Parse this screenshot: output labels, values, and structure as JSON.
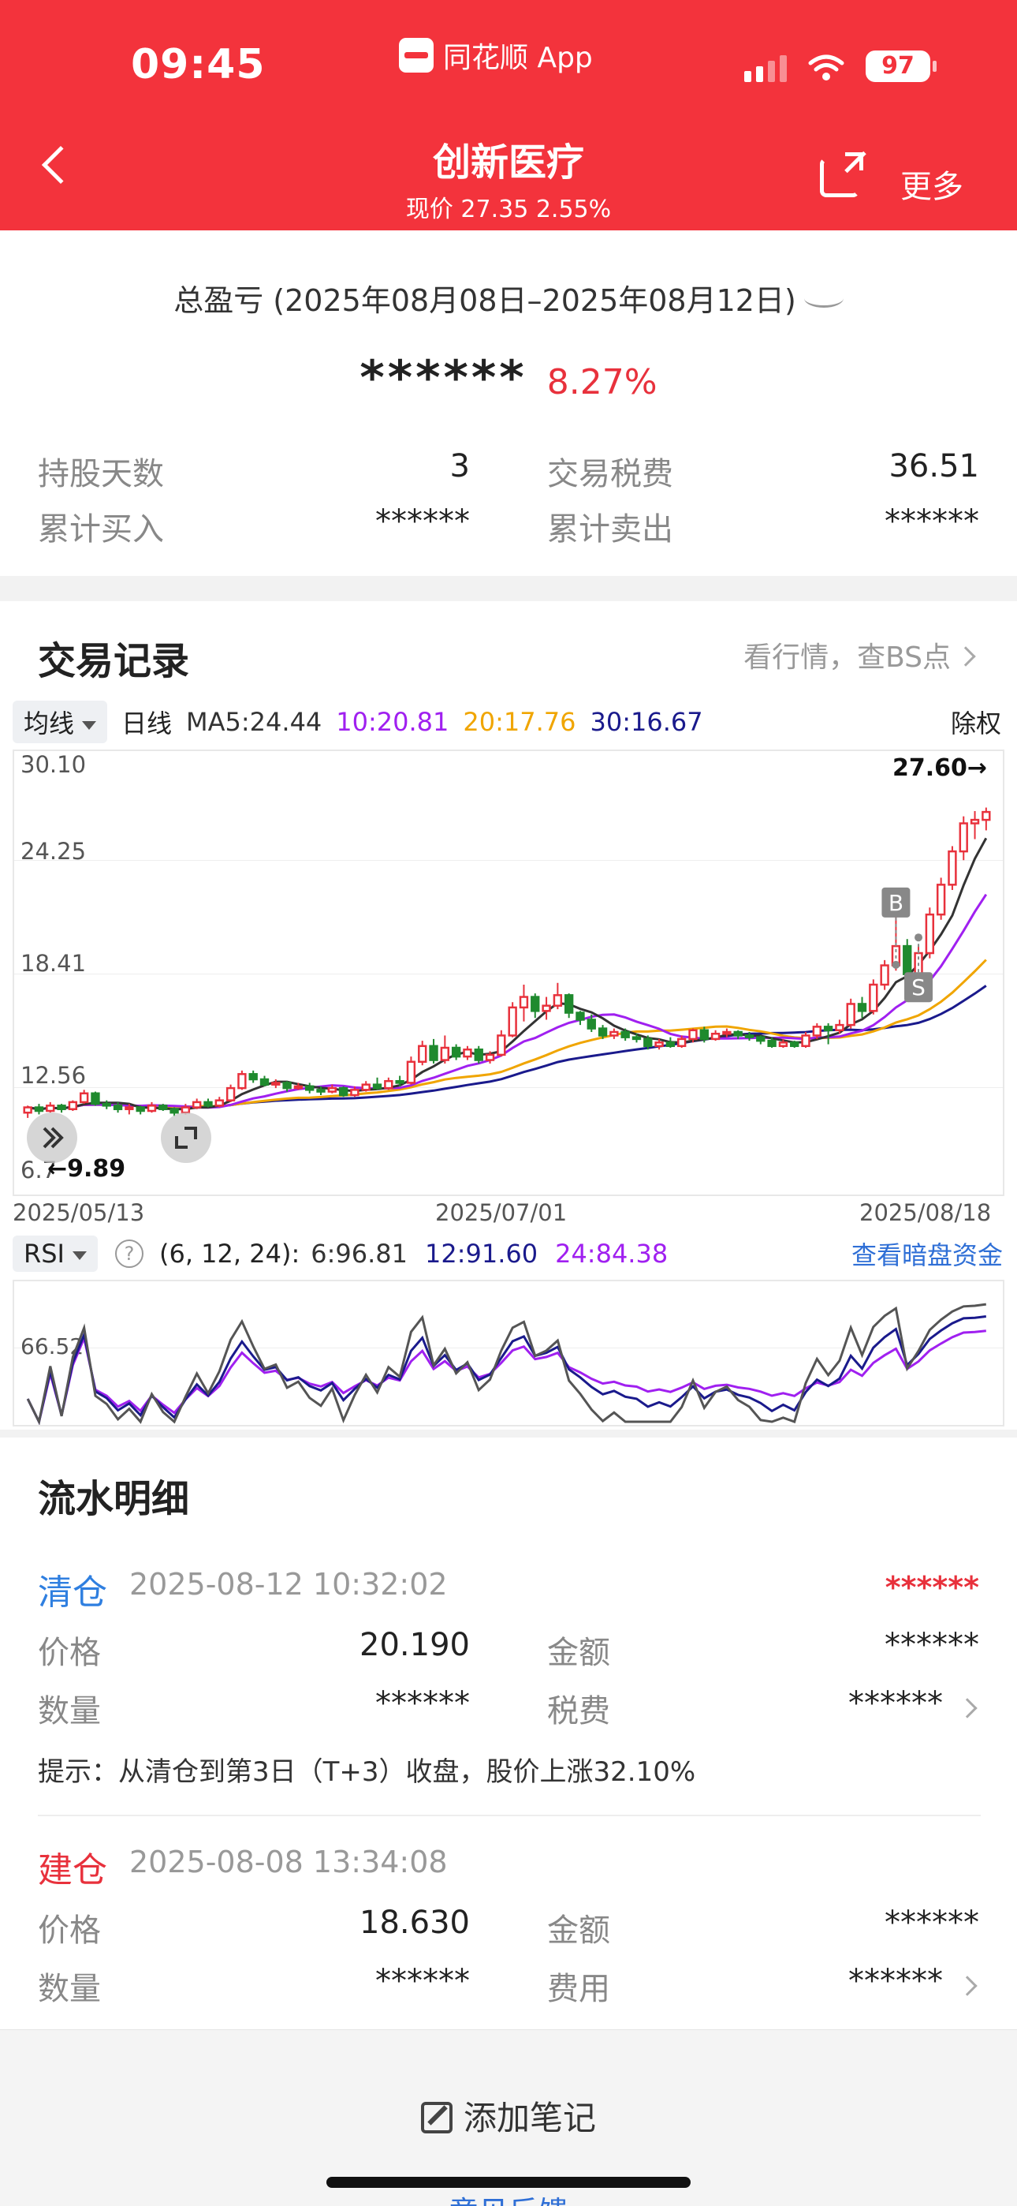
{
  "status_bar": {
    "time": "09:45",
    "app_name": "同花顺 App",
    "battery": "97"
  },
  "nav": {
    "title": "创新医疗",
    "subtitle": "现价 27.35 2.55%",
    "more": "更多"
  },
  "summary": {
    "title": "总盈亏 (2025年08月08日–2025年08月12日)",
    "profit_hidden": "******",
    "profit_pct": "8.27%",
    "hold_days_label": "持股天数",
    "hold_days_value": "3",
    "tax_label": "交易税费",
    "tax_value": "36.51",
    "buy_total_label": "累计买入",
    "buy_total_value": "******",
    "sell_total_label": "累计卖出",
    "sell_total_value": "******"
  },
  "records": {
    "title": "交易记录",
    "link": "看行情，查BS点",
    "toolbar": {
      "ma_select": "均线",
      "period": "日线",
      "ma5": "MA5:24.44",
      "ma10": "10:20.81",
      "ma20": "20:17.76",
      "ma30": "30:16.67",
      "adjust": "除权"
    },
    "y_labels": [
      "30.10",
      "24.25",
      "18.41",
      "12.56",
      "6.7"
    ],
    "max_label": "27.60→",
    "min_label": "←9.89",
    "dates": [
      "2025/05/13",
      "2025/07/01",
      "2025/08/18"
    ],
    "markers": {
      "buy": "B",
      "sell": "S"
    },
    "rsi": {
      "select": "RSI",
      "help": "?",
      "params": "(6, 12, 24):",
      "rsi6": "6:96.81",
      "rsi12": "12:91.60",
      "rsi24": "24:84.38",
      "link": "查看暗盘资金",
      "y_label": "66.52"
    }
  },
  "flow": {
    "title": "流水明细",
    "entries": [
      {
        "type": "清仓",
        "time": "2025-08-12 10:32:02",
        "amount_hidden": "******",
        "price_label": "价格",
        "price": "20.190",
        "amount_label": "金额",
        "amount": "******",
        "qty_label": "数量",
        "qty": "******",
        "fee_label": "税费",
        "fee": "******",
        "tip": "提示：从清仓到第3日（T+3）收盘，股价上涨32.10%"
      },
      {
        "type": "建仓",
        "time": "2025-08-08 13:34:08",
        "price_label": "价格",
        "price": "18.630",
        "amount_label": "金额",
        "amount": "******",
        "qty_label": "数量",
        "qty": "******",
        "fee_label": "费用",
        "fee": "******"
      }
    ]
  },
  "bottom": {
    "add_note": "添加笔记",
    "feedback": "意见反馈"
  },
  "colors": {
    "brand_red": "#f3333c",
    "up": "#e8313c",
    "down": "#1f8a2e",
    "ma5": "#333333",
    "ma10": "#a020f0",
    "ma20": "#f0a500",
    "ma30": "#1a1a8c",
    "link_blue": "#2f6fd6"
  },
  "chart_data": {
    "type": "candlestick",
    "x_range": [
      "2025/05/13",
      "2025/08/18"
    ],
    "ylim": [
      6.7,
      30.1
    ],
    "y_ticks": [
      30.1,
      24.25,
      18.41,
      12.56
    ],
    "max_price": 27.6,
    "min_price": 9.89,
    "candles": [
      [
        10.2,
        10.5,
        9.9,
        10.6
      ],
      [
        10.5,
        10.3,
        10.1,
        10.7
      ],
      [
        10.3,
        10.6,
        10.2,
        10.8
      ],
      [
        10.6,
        10.4,
        10.2,
        10.7
      ],
      [
        10.4,
        10.8,
        10.3,
        10.9
      ],
      [
        10.8,
        11.3,
        10.7,
        11.5
      ],
      [
        11.3,
        10.7,
        10.6,
        11.4
      ],
      [
        10.7,
        10.6,
        10.4,
        10.9
      ],
      [
        10.6,
        10.4,
        10.2,
        10.8
      ],
      [
        10.4,
        10.5,
        10.1,
        10.7
      ],
      [
        10.5,
        10.3,
        10.1,
        10.6
      ],
      [
        10.3,
        10.6,
        10.2,
        10.8
      ],
      [
        10.6,
        10.4,
        10.3,
        10.7
      ],
      [
        10.4,
        10.2,
        10.0,
        10.5
      ],
      [
        10.2,
        10.5,
        10.1,
        10.7
      ],
      [
        10.5,
        10.8,
        10.4,
        11.0
      ],
      [
        10.8,
        10.6,
        10.5,
        11.0
      ],
      [
        10.6,
        10.9,
        10.5,
        11.1
      ],
      [
        10.9,
        11.6,
        10.8,
        11.8
      ],
      [
        11.6,
        12.4,
        11.5,
        12.6
      ],
      [
        12.4,
        12.1,
        11.9,
        12.6
      ],
      [
        12.1,
        11.8,
        11.7,
        12.3
      ],
      [
        11.8,
        11.9,
        11.6,
        12.1
      ],
      [
        11.9,
        11.6,
        11.4,
        12.0
      ],
      [
        11.6,
        11.7,
        11.5,
        11.9
      ],
      [
        11.7,
        11.5,
        11.3,
        11.9
      ],
      [
        11.5,
        11.4,
        11.2,
        11.7
      ],
      [
        11.4,
        11.6,
        11.3,
        11.8
      ],
      [
        11.6,
        11.2,
        11.1,
        11.7
      ],
      [
        11.2,
        11.5,
        11.1,
        11.7
      ],
      [
        11.5,
        11.8,
        11.4,
        12.0
      ],
      [
        11.8,
        11.6,
        11.5,
        12.2
      ],
      [
        11.6,
        12.0,
        11.5,
        12.2
      ],
      [
        12.0,
        11.9,
        11.7,
        12.3
      ],
      [
        11.9,
        13.1,
        11.8,
        13.4
      ],
      [
        13.1,
        14.0,
        12.9,
        14.3
      ],
      [
        14.0,
        13.2,
        13.0,
        14.4
      ],
      [
        13.2,
        13.9,
        13.0,
        14.6
      ],
      [
        13.9,
        13.4,
        13.2,
        14.1
      ],
      [
        13.4,
        13.8,
        13.2,
        14.0
      ],
      [
        13.8,
        13.2,
        13.0,
        14.0
      ],
      [
        13.2,
        13.5,
        13.0,
        13.7
      ],
      [
        13.5,
        14.6,
        13.4,
        14.9
      ],
      [
        14.6,
        16.2,
        14.5,
        16.5
      ],
      [
        16.2,
        16.8,
        15.4,
        17.5
      ],
      [
        16.8,
        16.0,
        15.6,
        17.0
      ],
      [
        16.0,
        16.3,
        15.5,
        16.8
      ],
      [
        16.3,
        16.9,
        16.1,
        17.6
      ],
      [
        16.9,
        15.9,
        15.6,
        17.0
      ],
      [
        15.9,
        15.5,
        15.2,
        16.0
      ],
      [
        15.5,
        15.0,
        14.8,
        15.8
      ],
      [
        15.0,
        14.6,
        14.4,
        15.2
      ],
      [
        14.6,
        14.8,
        14.4,
        15.0
      ],
      [
        14.8,
        14.5,
        14.3,
        15.0
      ],
      [
        14.5,
        14.4,
        14.2,
        14.7
      ],
      [
        14.4,
        14.0,
        13.8,
        14.6
      ],
      [
        14.0,
        14.2,
        13.8,
        14.4
      ],
      [
        14.2,
        14.0,
        13.9,
        14.5
      ],
      [
        14.0,
        14.4,
        13.9,
        14.6
      ],
      [
        14.4,
        14.9,
        14.2,
        15.0
      ],
      [
        14.9,
        14.4,
        14.2,
        15.1
      ],
      [
        14.4,
        14.7,
        14.3,
        14.9
      ],
      [
        14.7,
        14.8,
        14.5,
        15.0
      ],
      [
        14.8,
        14.6,
        14.4,
        14.9
      ],
      [
        14.6,
        14.5,
        14.3,
        14.8
      ],
      [
        14.5,
        14.3,
        14.1,
        14.6
      ],
      [
        14.3,
        14.0,
        13.9,
        14.5
      ],
      [
        14.0,
        14.2,
        13.9,
        14.4
      ],
      [
        14.2,
        14.0,
        13.9,
        14.3
      ],
      [
        14.0,
        14.6,
        13.9,
        14.8
      ],
      [
        14.6,
        15.1,
        14.4,
        15.3
      ],
      [
        15.1,
        14.9,
        14.1,
        15.3
      ],
      [
        14.9,
        15.2,
        14.7,
        15.5
      ],
      [
        15.2,
        16.4,
        15.0,
        16.7
      ],
      [
        16.4,
        16.0,
        15.6,
        16.8
      ],
      [
        16.0,
        17.5,
        15.8,
        17.8
      ],
      [
        17.5,
        18.6,
        17.2,
        18.9
      ],
      [
        18.6,
        19.7,
        18.3,
        21.9
      ],
      [
        19.7,
        18.1,
        17.8,
        20.1
      ],
      [
        18.1,
        19.3,
        18.0,
        19.8
      ],
      [
        19.3,
        21.5,
        19.0,
        21.9
      ],
      [
        21.5,
        23.2,
        21.2,
        23.6
      ],
      [
        23.2,
        25.1,
        22.9,
        25.4
      ],
      [
        25.1,
        26.7,
        24.6,
        27.1
      ],
      [
        26.7,
        26.9,
        25.8,
        27.4
      ],
      [
        26.9,
        27.35,
        26.3,
        27.6
      ]
    ],
    "buy_point": {
      "date": "2025-08-08",
      "price": 18.63
    },
    "sell_point": {
      "date": "2025-08-12",
      "price": 20.19
    },
    "moving_averages": {
      "MA5": 24.44,
      "MA10": 20.81,
      "MA20": 17.76,
      "MA30": 16.67
    },
    "rsi": {
      "ylim": [
        40,
        100
      ],
      "tick": 66.52,
      "rsi6_last": 96.81,
      "rsi12_last": 91.6,
      "rsi24_last": 84.38
    }
  }
}
